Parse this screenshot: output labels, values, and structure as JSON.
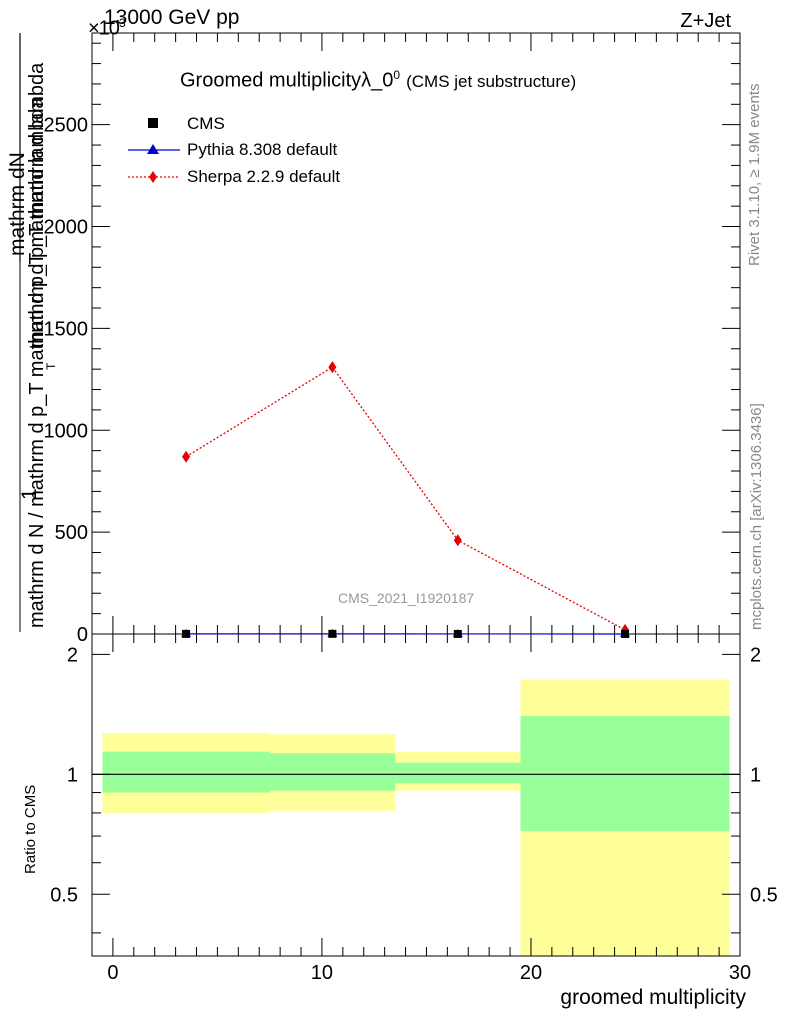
{
  "header": {
    "energy_label": "13000 GeV pp",
    "process_label": "Z+Jet",
    "exponent_label": "×10",
    "exponent_power": "3"
  },
  "side_labels": {
    "rivet": "Rivet 3.1.10, ≥ 1.9M events",
    "mcplots": "mcplots.cern.ch [arXiv:1306.3436]"
  },
  "chart_data": [
    {
      "type": "line",
      "title": "Groomed multiplicityλ_0",
      "title_sup": "0",
      "subtitle": "(CMS jet substructure)",
      "xlim": [
        -1,
        30
      ],
      "ylim": [
        0,
        2.95
      ],
      "ylabel_parts": {
        "one": "1",
        "upper_numerator": "mathrm dN",
        "upper_denominator": "mathrm d p_T mathrm d lambda",
        "lower": "mathrm d N / mathrm d p_T mathrm d p_T mathrmd lambda",
        "subscript": "T"
      },
      "y_ticks": [
        0,
        0.5,
        1,
        1.5,
        2,
        2.5
      ],
      "y_tick_labels": [
        "0",
        "500",
        "1000",
        "1500",
        "2000",
        "2500"
      ],
      "watermark": "CMS_2021_I1920187",
      "legend": [
        {
          "label": "CMS",
          "marker": "square",
          "color": "#000000"
        },
        {
          "label": "Pythia 8.308 default",
          "marker": "triangle",
          "color": "#0000cc"
        },
        {
          "label": "Sherpa 2.2.9 default",
          "marker": "diamond",
          "color": "#e60000"
        }
      ],
      "series": [
        {
          "name": "CMS",
          "x": [
            3.5,
            10.5,
            16.5,
            24.5
          ],
          "y": [
            0.0005,
            0.0008,
            0.0003,
            5e-05
          ]
        },
        {
          "name": "Pythia 8.308 default",
          "x": [
            3.5,
            10.5,
            16.5,
            24.5
          ],
          "y": [
            0.0005,
            0.0008,
            0.0003,
            5e-05
          ]
        },
        {
          "name": "Sherpa 2.2.9 default",
          "x": [
            3.5,
            10.5,
            16.5,
            24.5
          ],
          "y": [
            0.87,
            1.31,
            0.46,
            0.02
          ]
        }
      ]
    },
    {
      "type": "area",
      "ylabel": "Ratio to CMS",
      "xlabel": "groomed multiplicity",
      "xlim": [
        -1,
        30
      ],
      "ylim": [
        0.35,
        2.25
      ],
      "y_scale": "log",
      "x_ticks": [
        0,
        10,
        20,
        30
      ],
      "x_tick_labels": [
        "0",
        "10",
        "20",
        "30"
      ],
      "y_ticks": [
        0.5,
        1,
        2
      ],
      "y_tick_labels": [
        "0.5",
        "1",
        "2"
      ],
      "reference_line": 1,
      "bands": [
        {
          "x0": -0.5,
          "x1": 7.5,
          "yellow": [
            0.8,
            1.27
          ],
          "green": [
            0.9,
            1.14
          ]
        },
        {
          "x0": 7.5,
          "x1": 13.5,
          "yellow": [
            0.81,
            1.26
          ],
          "green": [
            0.91,
            1.13
          ]
        },
        {
          "x0": 13.5,
          "x1": 19.5,
          "yellow": [
            0.91,
            1.14
          ],
          "green": [
            0.95,
            1.07
          ]
        },
        {
          "x0": 19.5,
          "x1": 29.5,
          "yellow": [
            0.35,
            1.73
          ],
          "green": [
            0.72,
            1.4
          ]
        }
      ],
      "colors": {
        "yellow": "#ffff99",
        "green": "#99ff99"
      }
    }
  ]
}
